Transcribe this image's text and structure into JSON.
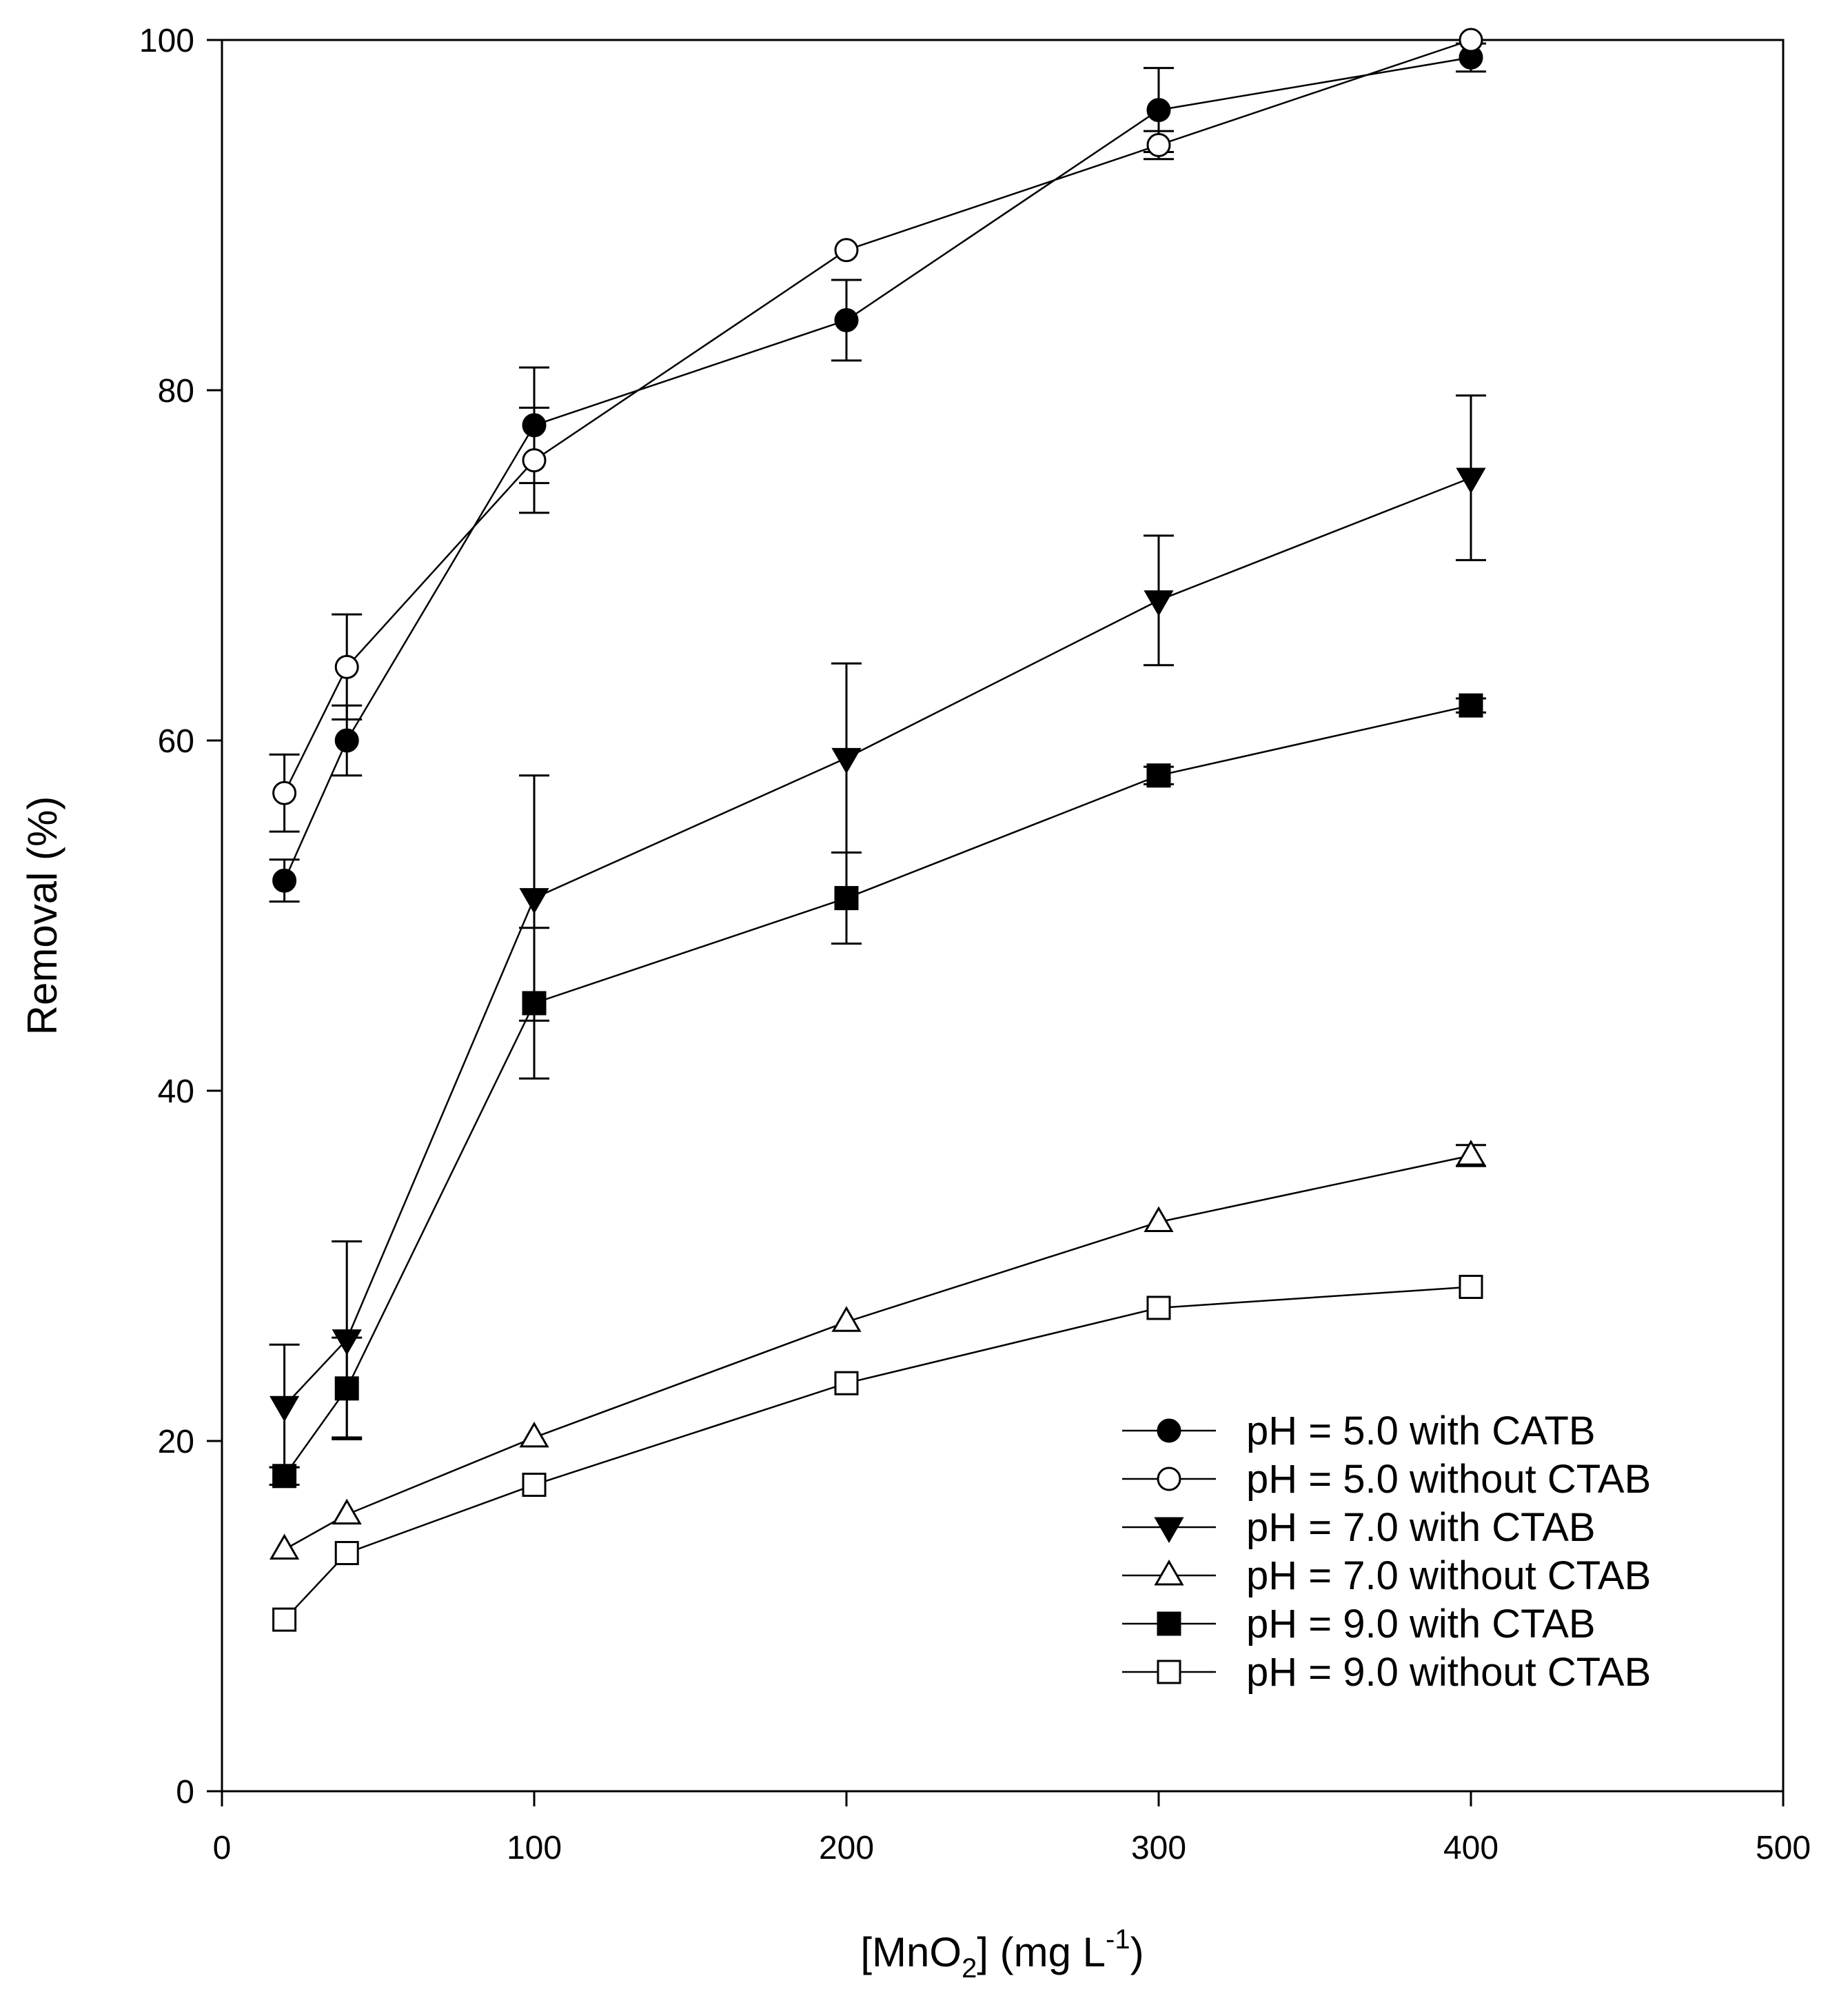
{
  "chart_data": {
    "type": "line",
    "title": "",
    "xlabel_parts": [
      "[MnO",
      "2",
      "] (mg L",
      "-1",
      ")"
    ],
    "ylabel": "Removal (%)",
    "xlim": [
      0,
      500
    ],
    "ylim": [
      0,
      100
    ],
    "xticks": [
      0,
      100,
      200,
      300,
      400,
      500
    ],
    "yticks": [
      0,
      20,
      40,
      60,
      80,
      100
    ],
    "grid": false,
    "legend_position": "lower-right",
    "x": [
      20,
      40,
      100,
      200,
      300,
      400
    ],
    "series": [
      {
        "name": "pH = 5.0 with CATB",
        "marker": "circle",
        "filled": true,
        "values": [
          52,
          60,
          78,
          84,
          96,
          99
        ],
        "errors": [
          1.2,
          2.0,
          3.3,
          2.3,
          2.4,
          0.8
        ]
      },
      {
        "name": "pH = 5.0 without CTAB",
        "marker": "circle",
        "filled": false,
        "values": [
          57,
          64.2,
          76,
          88,
          94,
          100
        ],
        "errors": [
          2.2,
          3.0,
          3.0,
          0,
          0.8,
          0
        ]
      },
      {
        "name": "pH = 7.0 with CTAB",
        "marker": "triangle-down",
        "filled": true,
        "values": [
          22,
          25.8,
          51,
          59,
          68,
          75
        ],
        "errors": [
          3.5,
          5.6,
          7.0,
          5.4,
          3.7,
          4.7
        ]
      },
      {
        "name": "pH = 7.0 without CTAB",
        "marker": "triangle-up",
        "filled": false,
        "values": [
          13.8,
          15.8,
          20.2,
          26.8,
          32.5,
          36.3
        ],
        "errors": [
          0,
          0,
          0,
          0,
          0,
          0.6
        ]
      },
      {
        "name": "pH = 9.0 with CTAB",
        "marker": "square",
        "filled": true,
        "values": [
          18,
          23,
          45,
          51,
          58,
          62
        ],
        "errors": [
          0.5,
          2.9,
          4.3,
          2.6,
          0.5,
          0.4
        ]
      },
      {
        "name": "pH = 9.0 without CTAB",
        "marker": "square",
        "filled": false,
        "values": [
          9.8,
          13.6,
          17.5,
          23.3,
          27.6,
          28.8
        ],
        "errors": [
          0,
          0,
          0,
          0,
          0,
          0
        ]
      }
    ]
  }
}
